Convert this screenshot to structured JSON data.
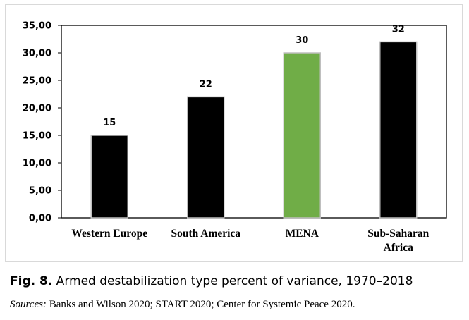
{
  "chart_data": {
    "type": "bar",
    "categories": [
      "Western Europe",
      "South America",
      "MENA",
      "Sub-Saharan Africa"
    ],
    "category_lines": [
      [
        "Western Europe"
      ],
      [
        "South America"
      ],
      [
        "MENA"
      ],
      [
        "Sub-Saharan",
        "Africa"
      ]
    ],
    "values": [
      15,
      22,
      30,
      32
    ],
    "data_labels": [
      "15",
      "22",
      "30",
      "32"
    ],
    "bar_colors": [
      "#000000",
      "#000000",
      "#70ad47",
      "#000000"
    ],
    "ylim": [
      0,
      35
    ],
    "yticks": [
      0,
      5,
      10,
      15,
      20,
      25,
      30,
      35
    ],
    "ytick_labels": [
      "0,00",
      "5,00",
      "10,00",
      "15,00",
      "20,00",
      "25,00",
      "30,00",
      "35,00"
    ],
    "title": "",
    "xlabel": "",
    "ylabel": "",
    "grid": false,
    "legend": false
  },
  "caption": {
    "label": "Fig. 8.",
    "text": " Armed destabilization type percent of variance, 1970–2018"
  },
  "sources": {
    "label": "Sources:",
    "text": " Banks and Wilson 2020; START 2020; Center for Systemic Peace 2020."
  }
}
